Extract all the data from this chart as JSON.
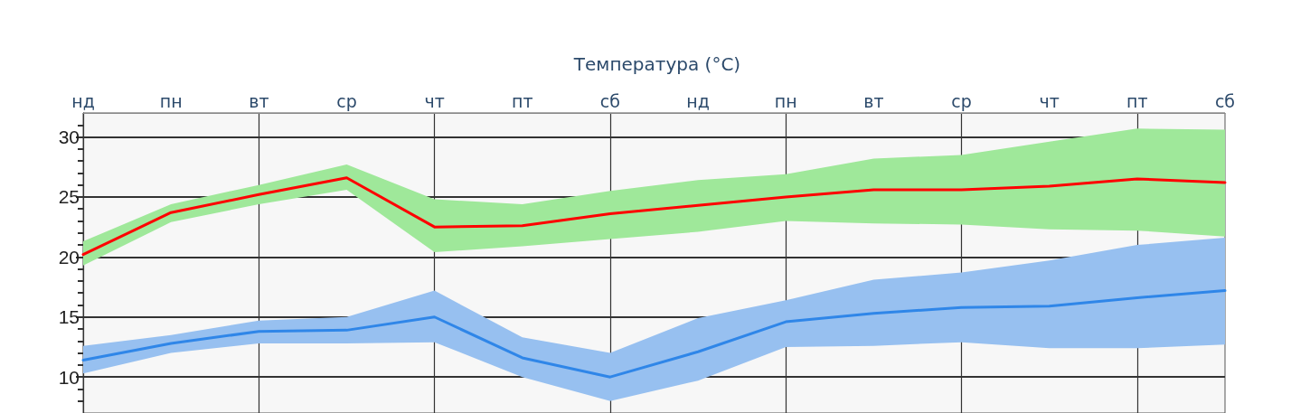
{
  "chart_data": {
    "type": "line",
    "title": "Температура (°C)",
    "categories": [
      "нд",
      "пн",
      "вт",
      "ср",
      "чт",
      "пт",
      "сб",
      "нд",
      "пн",
      "вт",
      "ср",
      "чт",
      "пт",
      "сб"
    ],
    "series": [
      {
        "color": "#ff0000",
        "values": [
          20.2,
          23.7,
          25.2,
          26.6,
          22.5,
          22.6,
          23.6,
          24.3,
          25.0,
          25.6,
          25.6,
          25.9,
          26.5,
          26.2
        ],
        "lower": [
          19.3,
          22.9,
          24.4,
          25.6,
          20.4,
          20.9,
          21.5,
          22.1,
          23.0,
          22.8,
          22.7,
          22.3,
          22.2,
          21.7
        ],
        "upper": [
          21.3,
          24.4,
          26.0,
          27.7,
          24.8,
          24.4,
          25.5,
          26.4,
          26.9,
          28.2,
          28.5,
          29.6,
          30.7,
          30.6
        ]
      },
      {
        "color": "#2f86e8",
        "values": [
          11.4,
          12.8,
          13.8,
          13.9,
          15.0,
          11.6,
          10.0,
          12.1,
          14.6,
          15.3,
          15.8,
          15.9,
          16.6,
          17.2
        ],
        "lower": [
          10.3,
          12.0,
          12.8,
          12.8,
          12.9,
          10.0,
          8.0,
          9.7,
          12.5,
          12.6,
          12.9,
          12.4,
          12.4,
          12.7
        ],
        "upper": [
          12.6,
          13.5,
          14.7,
          15.0,
          17.2,
          13.3,
          12.0,
          14.9,
          16.4,
          18.1,
          18.7,
          19.7,
          21.0,
          21.6
        ]
      }
    ],
    "ylim": [
      7,
      32
    ],
    "yticks": [
      10,
      15,
      20,
      25,
      30
    ],
    "grid": true,
    "marker": "none",
    "line_style": "solid"
  }
}
